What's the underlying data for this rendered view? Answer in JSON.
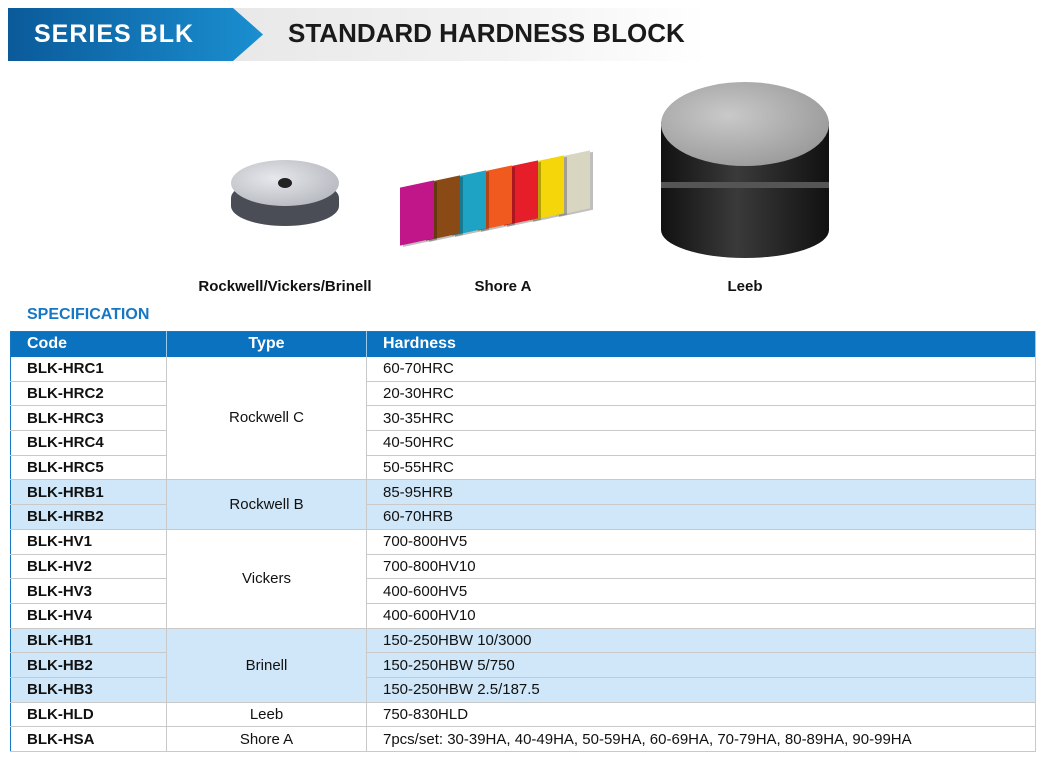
{
  "header": {
    "series": "SERIES BLK",
    "title": "STANDARD HARDNESS BLOCK"
  },
  "products": [
    {
      "caption": "Rockwell/Vickers/Brinell"
    },
    {
      "caption": "Shore A"
    },
    {
      "caption": "Leeb"
    }
  ],
  "spec_label": "SPECIFICATION",
  "table": {
    "columns": [
      "Code",
      "Type",
      "Hardness"
    ],
    "rows": [
      {
        "code": "BLK-HRC1",
        "type": "Rockwell C",
        "hardness": "60-70HRC"
      },
      {
        "code": "BLK-HRC2",
        "type": "Rockwell C",
        "hardness": "20-30HRC"
      },
      {
        "code": "BLK-HRC3",
        "type": "Rockwell C",
        "hardness": "30-35HRC"
      },
      {
        "code": "BLK-HRC4",
        "type": "Rockwell C",
        "hardness": "40-50HRC"
      },
      {
        "code": "BLK-HRC5",
        "type": "Rockwell C",
        "hardness": "50-55HRC"
      },
      {
        "code": "BLK-HRB1",
        "type": "Rockwell B",
        "hardness": "85-95HRB"
      },
      {
        "code": "BLK-HRB2",
        "type": "Rockwell B",
        "hardness": "60-70HRB"
      },
      {
        "code": "BLK-HV1",
        "type": "Vickers",
        "hardness": "700-800HV5"
      },
      {
        "code": "BLK-HV2",
        "type": "Vickers",
        "hardness": "700-800HV10"
      },
      {
        "code": "BLK-HV3",
        "type": "Vickers",
        "hardness": "400-600HV5"
      },
      {
        "code": "BLK-HV4",
        "type": "Vickers",
        "hardness": "400-600HV10"
      },
      {
        "code": "BLK-HB1",
        "type": "Brinell",
        "hardness": "150-250HBW 10/3000"
      },
      {
        "code": "BLK-HB2",
        "type": "Brinell",
        "hardness": "150-250HBW 5/750"
      },
      {
        "code": "BLK-HB3",
        "type": "Brinell",
        "hardness": "150-250HBW 2.5/187.5"
      },
      {
        "code": "BLK-HLD",
        "type": "Leeb",
        "hardness": "750-830HLD"
      },
      {
        "code": "BLK-HSA",
        "type": "Shore A",
        "hardness": "7pcs/set: 30-39HA, 40-49HA, 50-59HA, 60-69HA, 70-79HA, 80-89HA, 90-99HA"
      }
    ]
  },
  "colors": {
    "accent": "#0b72c0",
    "row_highlight": "#cfe7f8",
    "shore_blocks": [
      "#c0168a",
      "#8a4a16",
      "#1ea3c4",
      "#f05a1e",
      "#e61e2a",
      "#f5d60a",
      "#d8d6c0"
    ]
  }
}
